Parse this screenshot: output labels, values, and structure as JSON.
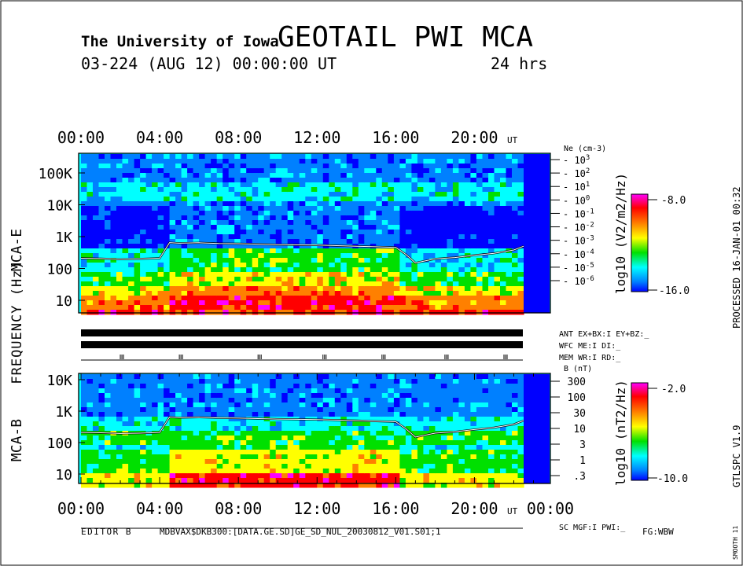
{
  "header": {
    "institution": "The University of Iowa",
    "title": "GEOTAIL PWI MCA",
    "date_line": "03-224 (AUG 12) 00:00:00 UT",
    "duration": "24 hrs"
  },
  "processed_label": "PROCESSED 16-JAN-01  00:32",
  "software_label": "GTLSPC   V1.9",
  "smooth_label": "SMOOTH 11",
  "frequency_axis_label": "FREQUENCY (Hz)",
  "time_unit": "UT",
  "time_ticks": [
    "00:00",
    "04:00",
    "08:00",
    "12:00",
    "16:00",
    "20:00"
  ],
  "bottom_end_tick": "00:00",
  "footer": {
    "editor": "EDITOR B",
    "file": "MDBVAX$DKB300:[DATA.GE.SD]GE_SD_NUL_20030812_V01.S01;1",
    "fg": "FG:WBW"
  },
  "status_rows": {
    "ant": "ANT EX+BX:I EY+BZ:_",
    "wfc": "WFC ME:I    DI:_",
    "mem": "MEM WR:I    RD:_",
    "sc": "SC MGF:I    PWI:_"
  },
  "colors": {
    "spectrum": [
      "#ff00ff",
      "#ff0000",
      "#ff8000",
      "#ffff00",
      "#00e000",
      "#00ffff",
      "#0080ff",
      "#0000ff"
    ],
    "line": "#ffffff",
    "background": "#ffffff"
  },
  "chart_data": [
    {
      "type": "heatmap",
      "panel": "MCA-E",
      "ylabel": "MCA-E",
      "y_scale": "log",
      "y_ticks": [
        "100K",
        "10K",
        "1K",
        "100",
        "10"
      ],
      "right_axis_title": "Ne (cm-3)",
      "right_axis_ticks": [
        "10^3",
        "10^2",
        "10^1",
        "10^0",
        "10^-1",
        "10^-2",
        "10^-3",
        "10^-4",
        "10^-5",
        "10^-6"
      ],
      "colorbar_title": "log10 (V2/m2/Hz)",
      "colorbar_range": [
        "-8.0",
        "-16.0"
      ],
      "overlay": "plasma frequency line",
      "overlay_hours": [
        0,
        1,
        2,
        3,
        4,
        4.5,
        5,
        6,
        7,
        8,
        9,
        10,
        11,
        12,
        13,
        14,
        15,
        16,
        16.5,
        17,
        18,
        19,
        20,
        21,
        22,
        22.5
      ],
      "overlay_freq_hz": [
        210,
        205,
        195,
        200,
        210,
        650,
        620,
        640,
        610,
        600,
        580,
        560,
        550,
        540,
        520,
        500,
        480,
        460,
        280,
        150,
        200,
        220,
        260,
        300,
        380,
        500
      ]
    },
    {
      "type": "heatmap",
      "panel": "MCA-B",
      "ylabel": "MCA-B",
      "y_scale": "log",
      "y_ticks": [
        "10K",
        "1K",
        "100",
        "10"
      ],
      "right_axis_title": "B (nT)",
      "right_axis_ticks": [
        "300",
        "100",
        "30",
        "10",
        "3",
        "1",
        ".3"
      ],
      "colorbar_title": "log10 (nT2/Hz)",
      "colorbar_range": [
        "-2.0",
        "-10.0"
      ],
      "overlay": "electron cyclotron frequency line"
    }
  ]
}
